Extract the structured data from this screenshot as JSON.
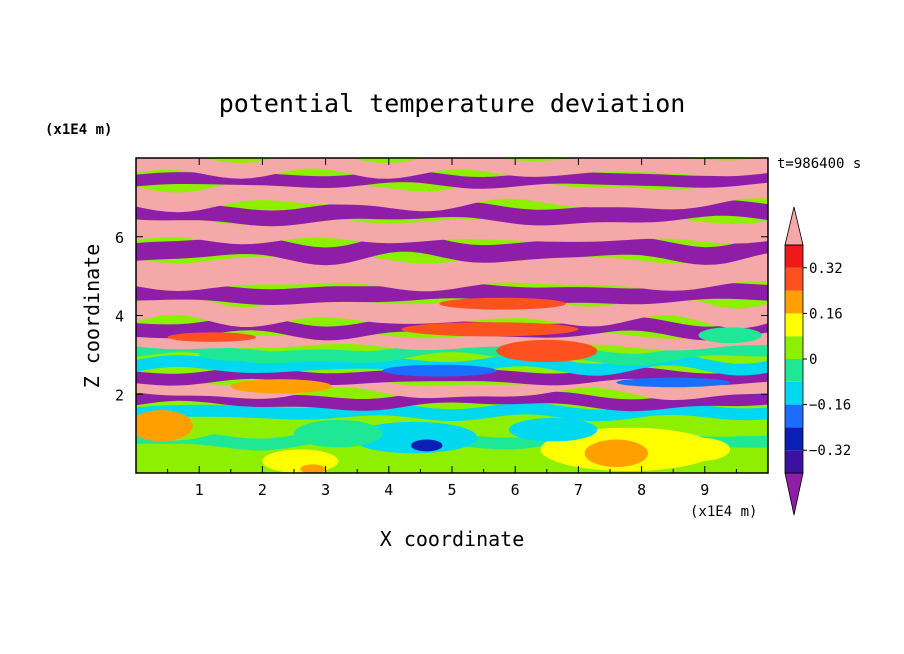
{
  "chart_data": {
    "type": "heatmap",
    "title": "potential temperature deviation",
    "xlabel": "X coordinate",
    "ylabel": "Z coordinate",
    "x_unit": "(x1E4 m)",
    "y_unit": "(x1E4 m)",
    "time_label": "t=986400 s",
    "xlim": [
      0,
      10
    ],
    "ylim": [
      0,
      8
    ],
    "x_ticks": [
      1,
      2,
      3,
      4,
      5,
      6,
      7,
      8,
      9
    ],
    "y_ticks": [
      2,
      4,
      6
    ],
    "colorbar": {
      "levels": [
        -0.4,
        -0.32,
        -0.24,
        -0.16,
        -0.08,
        0,
        0.08,
        0.16,
        0.24,
        0.32,
        0.4
      ],
      "colors": [
        "#8e1ea8",
        "#3c10a0",
        "#0a1fb4",
        "#1a6dff",
        "#00d8f0",
        "#1ee896",
        "#8ef000",
        "#ffff00",
        "#ffa000",
        "#ff5020",
        "#f01818",
        "#f4a8a8"
      ],
      "tick_labels": [
        "0.32",
        "0.16",
        "0",
        "−0.16",
        "−0.32"
      ],
      "tick_values": [
        0.32,
        0.16,
        0,
        -0.16,
        -0.32
      ]
    },
    "bands": [
      {
        "z0": 0.0,
        "z1": 0.7,
        "color": "#8ef000"
      },
      {
        "z0": 0.7,
        "z1": 1.0,
        "color": "#1ee896"
      },
      {
        "z0": 1.0,
        "z1": 1.4,
        "color": "#8ef000"
      },
      {
        "z0": 1.4,
        "z1": 1.7,
        "color": "#00d8f0"
      },
      {
        "z0": 1.7,
        "z1": 2.0,
        "color": "#8e1ea8"
      },
      {
        "z0": 2.0,
        "z1": 2.3,
        "color": "#f4a8a8"
      },
      {
        "z0": 2.3,
        "z1": 2.6,
        "color": "#8e1ea8"
      },
      {
        "z0": 2.6,
        "z1": 2.9,
        "color": "#00d8f0"
      },
      {
        "z0": 2.9,
        "z1": 3.2,
        "color": "#1ee896"
      },
      {
        "z0": 3.2,
        "z1": 3.5,
        "color": "#f4a8a8"
      },
      {
        "z0": 3.5,
        "z1": 3.85,
        "color": "#8e1ea8"
      },
      {
        "z0": 3.85,
        "z1": 4.35,
        "color": "#f4a8a8"
      },
      {
        "z0": 4.35,
        "z1": 4.75,
        "color": "#8e1ea8"
      },
      {
        "z0": 4.75,
        "z1": 5.45,
        "color": "#f4a8a8"
      },
      {
        "z0": 5.45,
        "z1": 5.9,
        "color": "#8e1ea8"
      },
      {
        "z0": 5.9,
        "z1": 6.4,
        "color": "#f4a8a8"
      },
      {
        "z0": 6.4,
        "z1": 6.8,
        "color": "#8e1ea8"
      },
      {
        "z0": 6.8,
        "z1": 7.3,
        "color": "#f4a8a8"
      },
      {
        "z0": 7.3,
        "z1": 7.6,
        "color": "#8e1ea8"
      },
      {
        "z0": 7.6,
        "z1": 8.0,
        "color": "#f4a8a8"
      }
    ],
    "blobs": [
      {
        "x": 7.8,
        "z": 0.6,
        "rx": 1.4,
        "rz": 0.55,
        "color": "#ffff00"
      },
      {
        "x": 7.6,
        "z": 0.5,
        "rx": 0.5,
        "rz": 0.35,
        "color": "#ffa000"
      },
      {
        "x": 8.9,
        "z": 0.6,
        "rx": 0.5,
        "rz": 0.3,
        "color": "#ffff00"
      },
      {
        "x": 2.6,
        "z": 0.3,
        "rx": 0.6,
        "rz": 0.3,
        "color": "#ffff00"
      },
      {
        "x": 2.8,
        "z": 0.1,
        "rx": 0.2,
        "rz": 0.12,
        "color": "#ffa000"
      },
      {
        "x": 0.4,
        "z": 1.2,
        "rx": 0.5,
        "rz": 0.4,
        "color": "#ffa000"
      },
      {
        "x": 4.4,
        "z": 0.9,
        "rx": 1.0,
        "rz": 0.4,
        "color": "#00d8f0"
      },
      {
        "x": 3.2,
        "z": 1.0,
        "rx": 0.7,
        "rz": 0.35,
        "color": "#1ee896"
      },
      {
        "x": 6.6,
        "z": 1.1,
        "rx": 0.7,
        "rz": 0.3,
        "color": "#00d8f0"
      },
      {
        "x": 4.6,
        "z": 0.7,
        "rx": 0.25,
        "rz": 0.15,
        "color": "#0a1fb4"
      },
      {
        "x": 6.5,
        "z": 3.1,
        "rx": 0.8,
        "rz": 0.28,
        "color": "#ff5020"
      },
      {
        "x": 5.6,
        "z": 3.65,
        "rx": 1.4,
        "rz": 0.18,
        "color": "#ff5020"
      },
      {
        "x": 5.8,
        "z": 4.3,
        "rx": 1.0,
        "rz": 0.15,
        "color": "#ff5020"
      },
      {
        "x": 1.2,
        "z": 3.45,
        "rx": 0.7,
        "rz": 0.12,
        "color": "#ff5020"
      },
      {
        "x": 4.8,
        "z": 2.6,
        "rx": 0.9,
        "rz": 0.15,
        "color": "#1a6dff"
      },
      {
        "x": 8.5,
        "z": 2.3,
        "rx": 0.9,
        "rz": 0.12,
        "color": "#1a6dff"
      },
      {
        "x": 2.3,
        "z": 2.2,
        "rx": 0.8,
        "rz": 0.18,
        "color": "#ffa000"
      },
      {
        "x": 9.4,
        "z": 3.5,
        "rx": 0.5,
        "rz": 0.2,
        "color": "#1ee896"
      },
      {
        "x": 1.6,
        "z": 3.0,
        "rx": 0.6,
        "rz": 0.15,
        "color": "#1ee896"
      }
    ]
  }
}
